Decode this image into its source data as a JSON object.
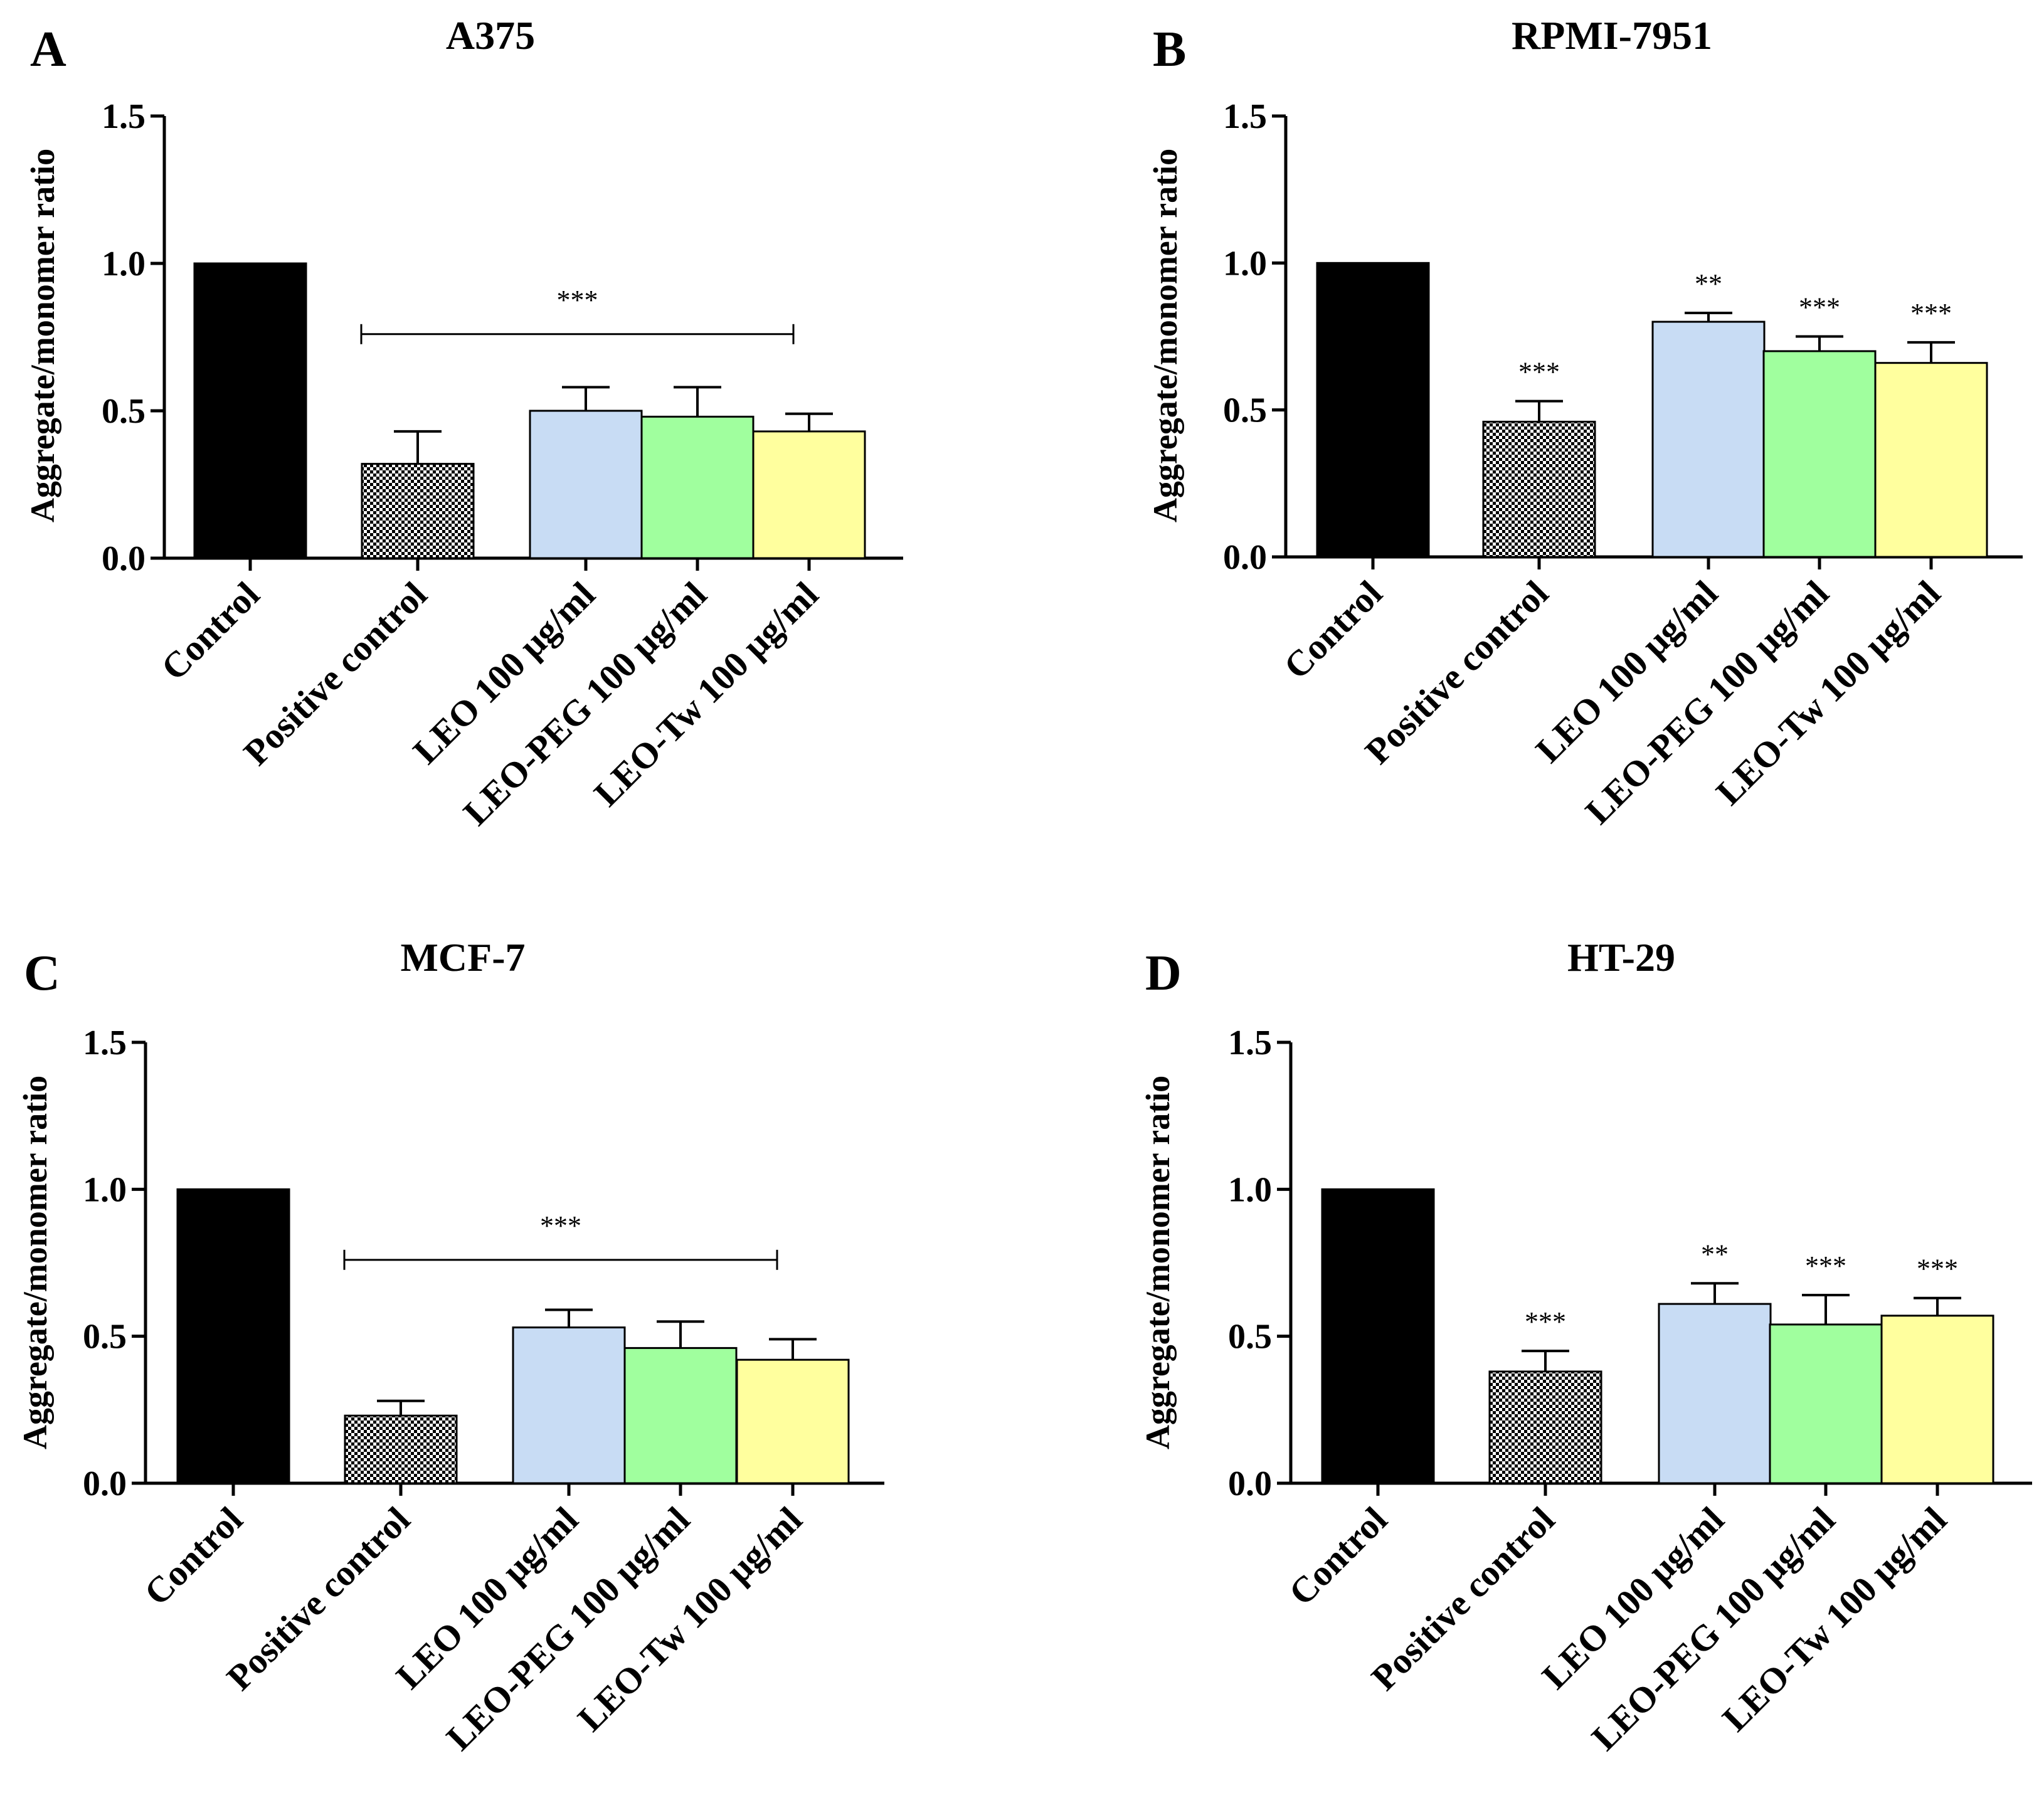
{
  "colors": {
    "control": "#000000",
    "positive_control_pattern": "checkerboard black/white",
    "leo": "#c8dcf4",
    "leo_peg": "#a0ff9e",
    "leo_tw": "#ffff9e"
  },
  "chart_data": [
    {
      "type": "bar",
      "panel": "A",
      "title": "A375",
      "ylabel": "Aggregate/monomer ratio",
      "xlabel": "",
      "ylim": [
        0,
        1.5
      ],
      "yticks": [
        "0.0",
        "0.5",
        "1.0",
        "1.5"
      ],
      "categories": [
        "Control",
        "Positive control",
        "LEO 100 μg/ml",
        "LEO-PEG 100 μg/ml",
        "LEO-Tw 100  μg/ml"
      ],
      "values": [
        1.0,
        0.32,
        0.5,
        0.48,
        0.43
      ],
      "errors": [
        0,
        0.11,
        0.08,
        0.1,
        0.06
      ],
      "significance": {
        "type": "bracket",
        "label": "***",
        "from": 1,
        "to": 4,
        "y": 0.76
      }
    },
    {
      "type": "bar",
      "panel": "B",
      "title": "RPMI-7951",
      "ylabel": "Aggregate/monomer ratio",
      "xlabel": "",
      "ylim": [
        0,
        1.5
      ],
      "yticks": [
        "0.0",
        "0.5",
        "1.0",
        "1.5"
      ],
      "categories": [
        "Control",
        "Positive control",
        "LEO 100 μg/ml",
        "LEO-PEG 100 μg/ml",
        "LEO-Tw 100  μg/ml"
      ],
      "values": [
        1.0,
        0.46,
        0.8,
        0.7,
        0.66
      ],
      "errors": [
        0,
        0.07,
        0.03,
        0.05,
        0.07
      ],
      "significance": {
        "type": "per_bar",
        "labels": [
          "",
          "***",
          "**",
          "***",
          "***"
        ]
      }
    },
    {
      "type": "bar",
      "panel": "C",
      "title": "MCF-7",
      "ylabel": "Aggregate/monomer ratio",
      "xlabel": "",
      "ylim": [
        0,
        1.5
      ],
      "yticks": [
        "0.0",
        "0.5",
        "1.0",
        "1.5"
      ],
      "categories": [
        "Control",
        "Positive control",
        "LEO 100 μg/ml",
        "LEO-PEG 100 μg/ml",
        "LEO-Tw 100  μg/ml"
      ],
      "values": [
        1.0,
        0.23,
        0.53,
        0.46,
        0.42
      ],
      "errors": [
        0,
        0.05,
        0.06,
        0.09,
        0.07
      ],
      "significance": {
        "type": "bracket",
        "label": "***",
        "from": 1,
        "to": 4,
        "y": 0.76
      }
    },
    {
      "type": "bar",
      "panel": "D",
      "title": "HT-29",
      "ylabel": "Aggregate/monomer ratio",
      "xlabel": "",
      "ylim": [
        0,
        1.5
      ],
      "yticks": [
        "0.0",
        "0.5",
        "1.0",
        "1.5"
      ],
      "categories": [
        "Control",
        "Positive control",
        "LEO 100 μg/ml",
        "LEO-PEG 100 μg/ml",
        "LEO-Tw 100  μg/ml"
      ],
      "values": [
        1.0,
        0.38,
        0.61,
        0.54,
        0.57
      ],
      "errors": [
        0,
        0.07,
        0.07,
        0.1,
        0.06
      ],
      "significance": {
        "type": "per_bar",
        "labels": [
          "",
          "***",
          "**",
          "***",
          "***"
        ]
      }
    }
  ]
}
